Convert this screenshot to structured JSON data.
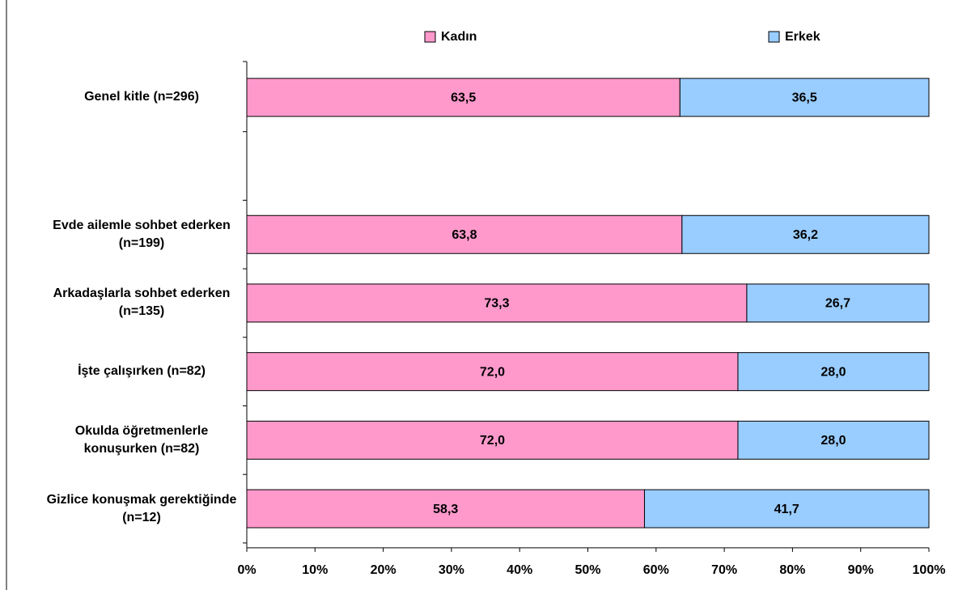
{
  "chart_data": {
    "type": "stacked-bar-horizontal",
    "categories": [
      "Genel kitle (n=296)",
      null,
      "Evde ailemle sohbet ederken (n=199)",
      "Arkadaşlarla sohbet ederken (n=135)",
      "İşte çalışırken (n=82)",
      "Okulda öğretmenlerle konuşurken (n=82)",
      "Gizlice konuşmak gerektiğinde (n=12)"
    ],
    "series": [
      {
        "name": "Kadın",
        "color": "#ff99cc",
        "values": [
          63.5,
          null,
          63.8,
          73.3,
          72.0,
          72.0,
          58.3
        ],
        "value_labels": [
          "63,5",
          null,
          "63,8",
          "73,3",
          "72,0",
          "72,0",
          "58,3"
        ]
      },
      {
        "name": "Erkek",
        "color": "#99ccff",
        "values": [
          36.5,
          null,
          36.2,
          26.7,
          28.0,
          28.0,
          41.7
        ],
        "value_labels": [
          "36,5",
          null,
          "36,2",
          "26,7",
          "28,0",
          "28,0",
          "41,7"
        ]
      }
    ],
    "xlim": [
      0,
      100
    ],
    "xticks": [
      {
        "value": 0,
        "label": "0%"
      },
      {
        "value": 10,
        "label": "10%"
      },
      {
        "value": 20,
        "label": "20%"
      },
      {
        "value": 30,
        "label": "30%"
      },
      {
        "value": 40,
        "label": "40%"
      },
      {
        "value": 50,
        "label": "50%"
      },
      {
        "value": 60,
        "label": "60%"
      },
      {
        "value": 70,
        "label": "70%"
      },
      {
        "value": 80,
        "label": "80%"
      },
      {
        "value": 90,
        "label": "90%"
      },
      {
        "value": 100,
        "label": "100%"
      }
    ],
    "legend": "top"
  }
}
